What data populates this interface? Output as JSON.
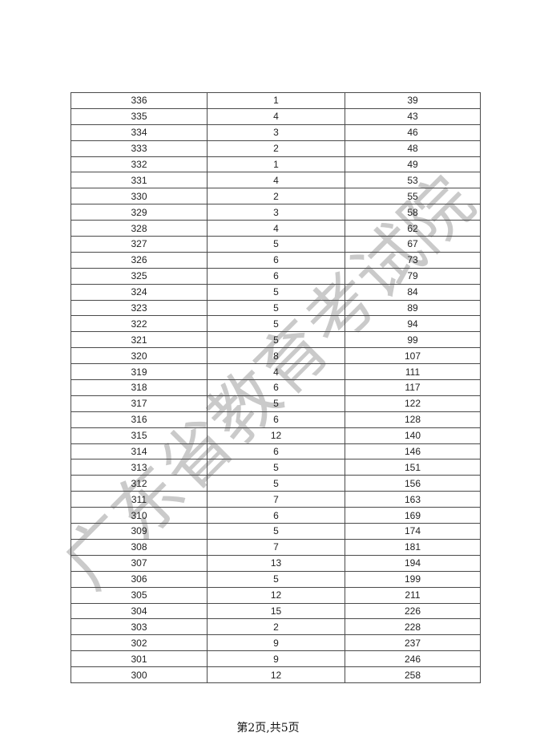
{
  "watermark": {
    "text": "广东省教育考试院",
    "color": "#9e9e9e"
  },
  "footer": {
    "text": "第2页,共5页"
  },
  "table": {
    "rows": [
      [
        "336",
        "1",
        "39"
      ],
      [
        "335",
        "4",
        "43"
      ],
      [
        "334",
        "3",
        "46"
      ],
      [
        "333",
        "2",
        "48"
      ],
      [
        "332",
        "1",
        "49"
      ],
      [
        "331",
        "4",
        "53"
      ],
      [
        "330",
        "2",
        "55"
      ],
      [
        "329",
        "3",
        "58"
      ],
      [
        "328",
        "4",
        "62"
      ],
      [
        "327",
        "5",
        "67"
      ],
      [
        "326",
        "6",
        "73"
      ],
      [
        "325",
        "6",
        "79"
      ],
      [
        "324",
        "5",
        "84"
      ],
      [
        "323",
        "5",
        "89"
      ],
      [
        "322",
        "5",
        "94"
      ],
      [
        "321",
        "5",
        "99"
      ],
      [
        "320",
        "8",
        "107"
      ],
      [
        "319",
        "4",
        "111"
      ],
      [
        "318",
        "6",
        "117"
      ],
      [
        "317",
        "5",
        "122"
      ],
      [
        "316",
        "6",
        "128"
      ],
      [
        "315",
        "12",
        "140"
      ],
      [
        "314",
        "6",
        "146"
      ],
      [
        "313",
        "5",
        "151"
      ],
      [
        "312",
        "5",
        "156"
      ],
      [
        "311",
        "7",
        "163"
      ],
      [
        "310",
        "6",
        "169"
      ],
      [
        "309",
        "5",
        "174"
      ],
      [
        "308",
        "7",
        "181"
      ],
      [
        "307",
        "13",
        "194"
      ],
      [
        "306",
        "5",
        "199"
      ],
      [
        "305",
        "12",
        "211"
      ],
      [
        "304",
        "15",
        "226"
      ],
      [
        "303",
        "2",
        "228"
      ],
      [
        "302",
        "9",
        "237"
      ],
      [
        "301",
        "9",
        "246"
      ],
      [
        "300",
        "12",
        "258"
      ]
    ]
  }
}
